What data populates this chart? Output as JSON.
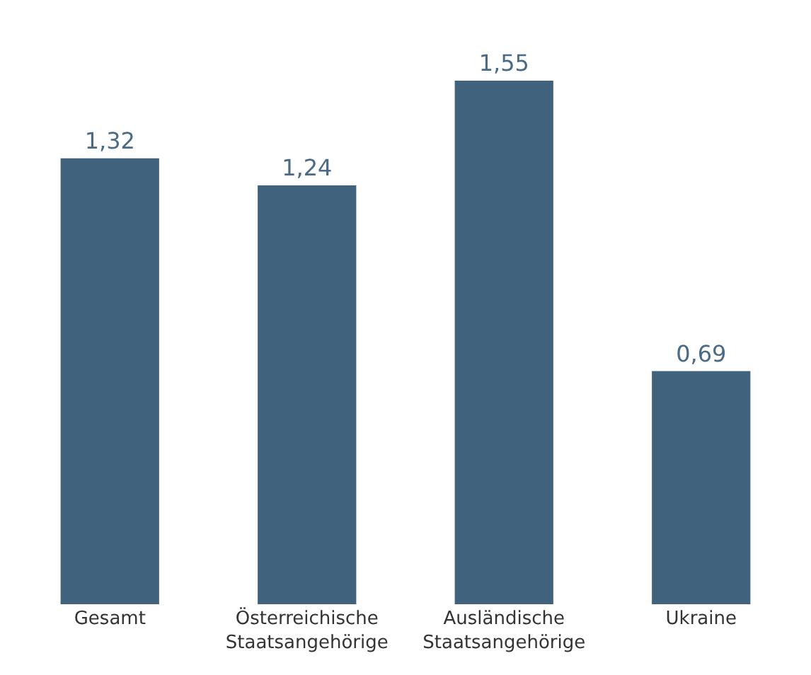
{
  "chart_data": {
    "type": "bar",
    "categories": [
      "Gesamt",
      "Österreichische Staatsangehörige",
      "Ausländische Staatsangehörige",
      "Ukraine"
    ],
    "values": [
      1.32,
      1.24,
      1.55,
      0.69
    ],
    "value_labels": [
      "1,32",
      "1,24",
      "1,55",
      "0,69"
    ],
    "color": "#41627c",
    "grid": false,
    "legend": false
  }
}
